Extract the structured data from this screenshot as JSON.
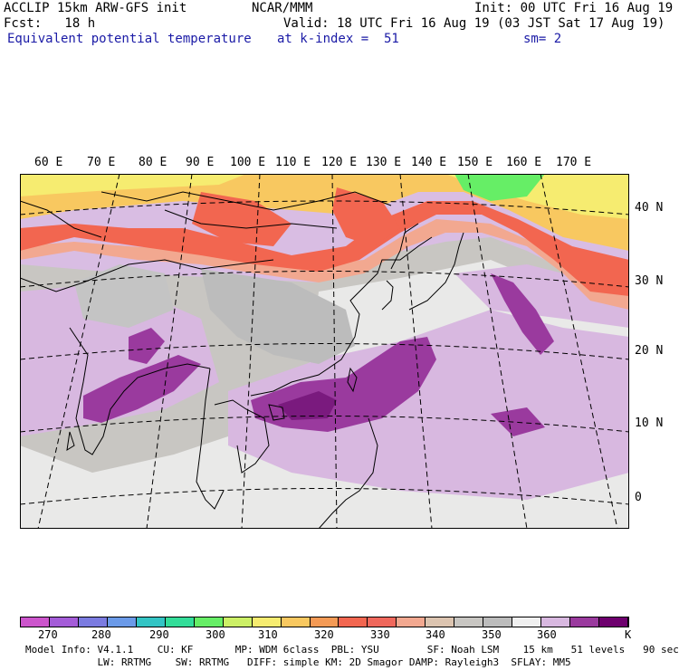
{
  "header": {
    "line1_left": "ACCLIP 15km ARW-GFS init",
    "line1_center": "NCAR/MMM",
    "line1_right": "Init: 00 UTC Fri 16 Aug 19",
    "line2_left": "Fcst:   18 h",
    "line2_right": "Valid: 18 UTC Fri 16 Aug 19 (03 JST Sat 17 Aug 19)",
    "line3_left": "Equivalent potential temperature",
    "line3_center": "at k-index =  51",
    "line3_right": "sm= 2"
  },
  "map": {
    "lon_labels": [
      "60 E",
      "70 E",
      "80 E",
      "90 E",
      "100 E",
      "110 E",
      "120 E",
      "130 E",
      "140 E",
      "150 E",
      "160 E",
      "170 E"
    ],
    "lat_labels": [
      "40 N",
      "30 N",
      "20 N",
      "10 N",
      "0"
    ]
  },
  "legend": {
    "tick_labels": [
      "270",
      "280",
      "290",
      "300",
      "310",
      "320",
      "330",
      "340",
      "350",
      "360",
      "K"
    ],
    "colors": [
      "#cc55cc",
      "#a45cd8",
      "#7b7be0",
      "#6b9ae8",
      "#33c4c4",
      "#33dd99",
      "#66ee66",
      "#ccf066",
      "#f6ec70",
      "#f8c860",
      "#f49a55",
      "#f26650",
      "#f0685c",
      "#f2a890",
      "#dcc4b0",
      "#c8c6c2",
      "#bcbcbc",
      "#f0f0f0",
      "#d8b8e0",
      "#9a3a9e",
      "#6e006e"
    ]
  },
  "footer": {
    "line1": "Model Info: V4.1.1    CU: KF       MP: WDM 6class  PBL: YSU        SF: Noah LSM    15 km   51 levels   90 sec",
    "line2": "            LW: RRTMG    SW: RRTMG   DIFF: simple KM: 2D Smagor DAMP: Rayleigh3  SFLAY: MM5"
  }
}
